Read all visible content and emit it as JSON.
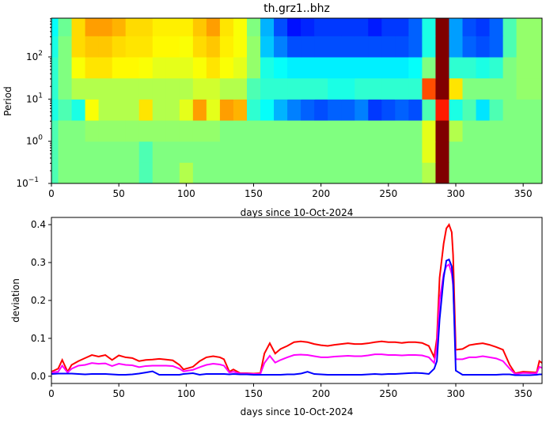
{
  "chart_data": [
    {
      "type": "heatmap",
      "title": "th.grz1..bhz",
      "xlabel": "days since 10-Oct-2024",
      "ylabel": "Period",
      "xlim": [
        0,
        364
      ],
      "ylim": [
        0.1,
        830
      ],
      "yscale": "log",
      "colormap": "jet",
      "xticks": [
        "0",
        "50",
        "100",
        "150",
        "200",
        "250",
        "300",
        "350"
      ],
      "yticks": [
        {
          "base": "10",
          "exp": "−1"
        },
        {
          "base": "10",
          "exp": "0"
        },
        {
          "base": "10",
          "exp": "1"
        },
        {
          "base": "10",
          "exp": "2"
        }
      ],
      "x_days": [
        0,
        10,
        20,
        30,
        40,
        50,
        60,
        70,
        80,
        90,
        100,
        110,
        120,
        130,
        140,
        150,
        160,
        170,
        180,
        190,
        200,
        210,
        220,
        230,
        240,
        250,
        260,
        270,
        280,
        290,
        300,
        310,
        320,
        330,
        340,
        350,
        360
      ],
      "row_log10_period": [
        -0.75,
        -0.25,
        0.25,
        0.75,
        1.25,
        1.75,
        2.25,
        2.7
      ],
      "values_normalized": [
        [
          0.45,
          0.5,
          0.5,
          0.5,
          0.5,
          0.5,
          0.5,
          0.45,
          0.5,
          0.5,
          0.55,
          0.5,
          0.5,
          0.5,
          0.5,
          0.5,
          0.5,
          0.5,
          0.5,
          0.5,
          0.5,
          0.5,
          0.5,
          0.5,
          0.5,
          0.5,
          0.5,
          0.5,
          0.55,
          1,
          0.5,
          0.5,
          0.5,
          0.5,
          0.5,
          0.5,
          0.5
        ],
        [
          0.45,
          0.5,
          0.5,
          0.5,
          0.5,
          0.5,
          0.5,
          0.45,
          0.5,
          0.5,
          0.5,
          0.5,
          0.5,
          0.5,
          0.5,
          0.5,
          0.5,
          0.5,
          0.5,
          0.5,
          0.5,
          0.5,
          0.5,
          0.5,
          0.5,
          0.5,
          0.5,
          0.5,
          0.6,
          1,
          0.5,
          0.5,
          0.5,
          0.5,
          0.5,
          0.5,
          0.5
        ],
        [
          0.45,
          0.5,
          0.5,
          0.52,
          0.52,
          0.52,
          0.52,
          0.52,
          0.52,
          0.52,
          0.52,
          0.52,
          0.52,
          0.5,
          0.5,
          0.5,
          0.5,
          0.5,
          0.5,
          0.5,
          0.5,
          0.5,
          0.5,
          0.5,
          0.5,
          0.5,
          0.5,
          0.5,
          0.6,
          1,
          0.55,
          0.5,
          0.5,
          0.5,
          0.5,
          0.5,
          0.5
        ],
        [
          0.4,
          0.45,
          0.4,
          0.62,
          0.55,
          0.55,
          0.55,
          0.65,
          0.55,
          0.55,
          0.6,
          0.72,
          0.6,
          0.72,
          0.7,
          0.42,
          0.38,
          0.3,
          0.25,
          0.22,
          0.2,
          0.22,
          0.22,
          0.25,
          0.18,
          0.2,
          0.22,
          0.2,
          0.45,
          0.85,
          0.4,
          0.45,
          0.35,
          0.45,
          0.5,
          0.5,
          0.5
        ],
        [
          0.42,
          0.5,
          0.55,
          0.55,
          0.55,
          0.55,
          0.55,
          0.55,
          0.55,
          0.55,
          0.55,
          0.58,
          0.58,
          0.55,
          0.55,
          0.45,
          0.42,
          0.42,
          0.42,
          0.42,
          0.42,
          0.4,
          0.4,
          0.42,
          0.42,
          0.42,
          0.42,
          0.42,
          0.8,
          1,
          0.65,
          0.5,
          0.5,
          0.5,
          0.5,
          0.52,
          0.52
        ],
        [
          0.42,
          0.5,
          0.62,
          0.65,
          0.65,
          0.63,
          0.63,
          0.62,
          0.6,
          0.6,
          0.6,
          0.62,
          0.65,
          0.62,
          0.6,
          0.52,
          0.4,
          0.38,
          0.36,
          0.36,
          0.36,
          0.36,
          0.36,
          0.36,
          0.36,
          0.36,
          0.36,
          0.38,
          0.5,
          1,
          0.42,
          0.42,
          0.4,
          0.42,
          0.5,
          0.52,
          0.52
        ],
        [
          0.4,
          0.5,
          0.66,
          0.68,
          0.68,
          0.66,
          0.65,
          0.65,
          0.63,
          0.63,
          0.62,
          0.66,
          0.68,
          0.64,
          0.62,
          0.52,
          0.32,
          0.25,
          0.2,
          0.2,
          0.2,
          0.2,
          0.2,
          0.2,
          0.2,
          0.2,
          0.2,
          0.22,
          0.4,
          1,
          0.28,
          0.22,
          0.2,
          0.22,
          0.45,
          0.52,
          0.52
        ],
        [
          0.38,
          0.48,
          0.66,
          0.72,
          0.72,
          0.7,
          0.66,
          0.66,
          0.64,
          0.64,
          0.64,
          0.68,
          0.72,
          0.65,
          0.62,
          0.5,
          0.3,
          0.2,
          0.14,
          0.16,
          0.18,
          0.18,
          0.18,
          0.18,
          0.15,
          0.18,
          0.18,
          0.22,
          0.4,
          1,
          0.28,
          0.2,
          0.18,
          0.22,
          0.45,
          0.52,
          0.52
        ]
      ]
    },
    {
      "type": "line",
      "xlabel": "days since 10-Oct-2024",
      "ylabel": "deviation",
      "xlim": [
        0,
        364
      ],
      "ylim": [
        -0.019,
        0.419
      ],
      "xticks": [
        "0",
        "50",
        "100",
        "150",
        "200",
        "250",
        "300",
        "350"
      ],
      "yticks": [
        "0.0",
        "0.1",
        "0.2",
        "0.3",
        "0.4"
      ],
      "x": [
        0,
        5,
        8,
        12,
        15,
        20,
        25,
        30,
        35,
        40,
        45,
        50,
        55,
        60,
        65,
        70,
        75,
        80,
        85,
        90,
        95,
        98,
        105,
        110,
        115,
        120,
        125,
        128,
        132,
        135,
        140,
        145,
        150,
        155,
        158,
        162,
        166,
        170,
        175,
        180,
        185,
        190,
        195,
        200,
        205,
        210,
        215,
        220,
        225,
        230,
        235,
        240,
        245,
        250,
        255,
        260,
        265,
        270,
        275,
        280,
        284,
        286,
        288,
        291,
        293,
        295,
        297,
        298,
        300,
        305,
        310,
        315,
        320,
        325,
        330,
        335,
        340,
        344,
        350,
        355,
        360,
        362,
        364
      ],
      "series": [
        {
          "color": "#ff0000",
          "values": [
            0.012,
            0.02,
            0.043,
            0.012,
            0.03,
            0.04,
            0.048,
            0.056,
            0.052,
            0.056,
            0.043,
            0.055,
            0.05,
            0.048,
            0.04,
            0.043,
            0.044,
            0.046,
            0.044,
            0.042,
            0.03,
            0.018,
            0.025,
            0.04,
            0.05,
            0.053,
            0.05,
            0.045,
            0.012,
            0.018,
            0.008,
            0.008,
            0.007,
            0.008,
            0.06,
            0.087,
            0.06,
            0.072,
            0.08,
            0.09,
            0.092,
            0.09,
            0.085,
            0.082,
            0.08,
            0.083,
            0.085,
            0.087,
            0.085,
            0.085,
            0.087,
            0.09,
            0.092,
            0.09,
            0.09,
            0.088,
            0.09,
            0.09,
            0.088,
            0.08,
            0.05,
            0.1,
            0.26,
            0.35,
            0.39,
            0.4,
            0.38,
            0.32,
            0.07,
            0.072,
            0.082,
            0.085,
            0.087,
            0.083,
            0.077,
            0.07,
            0.03,
            0.008,
            0.012,
            0.011,
            0.01,
            0.04,
            0.035
          ]
        },
        {
          "color": "#ff00ff",
          "values": [
            0.01,
            0.012,
            0.028,
            0.01,
            0.02,
            0.028,
            0.03,
            0.035,
            0.033,
            0.034,
            0.027,
            0.033,
            0.03,
            0.029,
            0.024,
            0.027,
            0.028,
            0.028,
            0.028,
            0.027,
            0.02,
            0.013,
            0.017,
            0.024,
            0.03,
            0.033,
            0.031,
            0.028,
            0.01,
            0.012,
            0.007,
            0.007,
            0.006,
            0.006,
            0.035,
            0.054,
            0.036,
            0.043,
            0.05,
            0.056,
            0.057,
            0.056,
            0.053,
            0.05,
            0.05,
            0.052,
            0.053,
            0.054,
            0.053,
            0.053,
            0.055,
            0.058,
            0.058,
            0.056,
            0.056,
            0.055,
            0.056,
            0.056,
            0.055,
            0.05,
            0.035,
            0.08,
            0.2,
            0.27,
            0.29,
            0.295,
            0.27,
            0.24,
            0.045,
            0.045,
            0.05,
            0.05,
            0.053,
            0.05,
            0.047,
            0.04,
            0.02,
            0.006,
            0.009,
            0.008,
            0.008,
            0.025,
            0.022
          ]
        },
        {
          "color": "#0000ff",
          "values": [
            0.006,
            0.007,
            0.007,
            0.007,
            0.007,
            0.006,
            0.005,
            0.006,
            0.006,
            0.006,
            0.005,
            0.004,
            0.004,
            0.005,
            0.007,
            0.01,
            0.013,
            0.004,
            0.004,
            0.004,
            0.004,
            0.006,
            0.008,
            0.004,
            0.006,
            0.006,
            0.006,
            0.006,
            0.005,
            0.006,
            0.005,
            0.005,
            0.004,
            0.004,
            0.004,
            0.004,
            0.004,
            0.004,
            0.005,
            0.005,
            0.007,
            0.012,
            0.006,
            0.005,
            0.004,
            0.004,
            0.004,
            0.004,
            0.004,
            0.004,
            0.005,
            0.006,
            0.005,
            0.006,
            0.006,
            0.007,
            0.008,
            0.009,
            0.008,
            0.006,
            0.02,
            0.04,
            0.15,
            0.26,
            0.305,
            0.308,
            0.29,
            0.25,
            0.015,
            0.004,
            0.004,
            0.004,
            0.004,
            0.004,
            0.004,
            0.005,
            0.005,
            0.003,
            0.003,
            0.003,
            0.004,
            0.005,
            0.005
          ]
        }
      ]
    }
  ]
}
